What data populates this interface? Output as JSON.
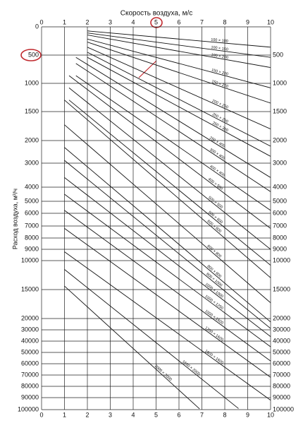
{
  "chart_data": {
    "type": "line",
    "title": "Скорость воздуха, м/с",
    "y_label": "Расход воздуха, м³/ч",
    "xlim": [
      0,
      10
    ],
    "xticks": [
      0,
      1,
      2,
      3,
      4,
      5,
      6,
      7,
      8,
      9,
      10
    ],
    "ylim": [
      0,
      100000
    ],
    "yticks": [
      0,
      500,
      1000,
      1500,
      2000,
      3000,
      4000,
      5000,
      6000,
      7000,
      8000,
      9000,
      10000,
      15000,
      20000,
      30000,
      40000,
      50000,
      60000,
      70000,
      80000,
      90000,
      100000
    ],
    "grid": true,
    "color": "#111",
    "series": [
      {
        "name": "100 × 100",
        "x": [
          2,
          10
        ],
        "values": [
          72,
          360
        ]
      },
      {
        "name": "100 × 150",
        "x": [
          2,
          10
        ],
        "values": [
          108,
          540
        ]
      },
      {
        "name": "100 × 200",
        "x": [
          2,
          10
        ],
        "values": [
          144,
          720
        ]
      },
      {
        "name": "150 × 200",
        "x": [
          2,
          10
        ],
        "values": [
          216,
          1080
        ]
      },
      {
        "name": "150 × 250",
        "x": [
          2,
          10
        ],
        "values": [
          270,
          1350
        ]
      },
      {
        "name": "200 × 250",
        "x": [
          2,
          10
        ],
        "values": [
          360,
          1800
        ]
      },
      {
        "name": "250 × 250",
        "x": [
          2,
          10
        ],
        "values": [
          450,
          2250
        ]
      },
      {
        "name": "250 × 300",
        "x": [
          2,
          10
        ],
        "values": [
          540,
          2700
        ]
      },
      {
        "name": "250 × 400",
        "x": [
          1.5,
          10
        ],
        "values": [
          540,
          3600
        ]
      },
      {
        "name": "300 × 400",
        "x": [
          1.5,
          10
        ],
        "values": [
          648,
          4320
        ]
      },
      {
        "name": "400 × 400",
        "x": [
          1.5,
          10
        ],
        "values": [
          864,
          5760
        ]
      },
      {
        "name": "400 × 500",
        "x": [
          1.2,
          10
        ],
        "values": [
          864,
          7200
        ]
      },
      {
        "name": "500 × 500",
        "x": [
          1.2,
          10
        ],
        "values": [
          1080,
          9000
        ]
      },
      {
        "name": "500 × 600",
        "x": [
          1.2,
          10
        ],
        "values": [
          1296,
          10800
        ]
      },
      {
        "name": "600 × 600",
        "x": [
          1,
          10
        ],
        "values": [
          1296,
          12960
        ]
      },
      {
        "name": "600 × 800",
        "x": [
          1,
          10
        ],
        "values": [
          1728,
          17280
        ]
      },
      {
        "name": "800 × 800",
        "x": [
          1,
          10
        ],
        "values": [
          2304,
          23040
        ]
      },
      {
        "name": "800 × 1000",
        "x": [
          1,
          10
        ],
        "values": [
          2880,
          28800
        ]
      },
      {
        "name": "1000 × 1000",
        "x": [
          1,
          10
        ],
        "values": [
          3600,
          36000
        ]
      },
      {
        "name": "1000 × 1250",
        "x": [
          1,
          10
        ],
        "values": [
          4500,
          45000
        ]
      },
      {
        "name": "1000 × 1600",
        "x": [
          1,
          10
        ],
        "values": [
          5760,
          57600
        ]
      },
      {
        "name": "1250 × 1600",
        "x": [
          1,
          10
        ],
        "values": [
          7200,
          72000
        ]
      },
      {
        "name": "1600 × 1600",
        "x": [
          1,
          10
        ],
        "values": [
          9216,
          92160
        ]
      },
      {
        "name": "1600 × 2000",
        "x": [
          1,
          8.6
        ],
        "values": [
          11520,
          99072
        ]
      },
      {
        "name": "2000 × 2000",
        "x": [
          1,
          6.9
        ],
        "values": [
          14400,
          99360
        ]
      }
    ]
  }
}
